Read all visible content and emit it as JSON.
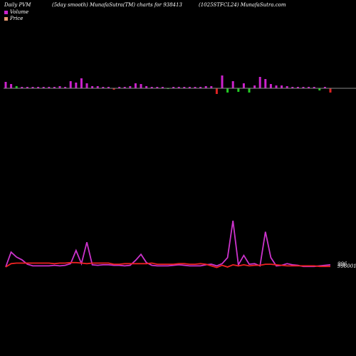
{
  "header": {
    "left": "Daily PVM",
    "middle": "(5day smooth) MunafaSutra(TM) charts for 938413",
    "right": "(1025STFCL24) MunafaSutra.com"
  },
  "legend": {
    "volume_label": "Volume",
    "price_label": "Price"
  },
  "colors": {
    "background": "#000000",
    "volume_up": "#cc22cc",
    "volume_down_green": "#22cc22",
    "volume_down_red": "#dd2222",
    "price_line": "#ee2222",
    "smooth_line": "#cc33cc",
    "baseline": "#888888",
    "legend_volume_swatch": "#cc22cc",
    "legend_price_swatch": "#e89a70"
  },
  "chart_data": {
    "type": "bar+line",
    "end_labels": [
      "996",
      "996001.0"
    ],
    "volume_bars": [
      {
        "v": 9,
        "c": "up"
      },
      {
        "v": 6,
        "c": "up"
      },
      {
        "v": 3,
        "c": "down_green"
      },
      {
        "v": 2,
        "c": "up"
      },
      {
        "v": 2,
        "c": "up"
      },
      {
        "v": 2,
        "c": "up"
      },
      {
        "v": 2,
        "c": "up"
      },
      {
        "v": 2,
        "c": "up"
      },
      {
        "v": 2,
        "c": "up"
      },
      {
        "v": 2,
        "c": "up"
      },
      {
        "v": 3,
        "c": "up"
      },
      {
        "v": 2,
        "c": "up"
      },
      {
        "v": 10,
        "c": "up"
      },
      {
        "v": 8,
        "c": "up"
      },
      {
        "v": 14,
        "c": "up"
      },
      {
        "v": 7,
        "c": "up"
      },
      {
        "v": 3,
        "c": "up"
      },
      {
        "v": 3,
        "c": "up"
      },
      {
        "v": 2,
        "c": "up"
      },
      {
        "v": 2,
        "c": "up"
      },
      {
        "v": -2,
        "c": "down_red"
      },
      {
        "v": 2,
        "c": "up"
      },
      {
        "v": 2,
        "c": "up"
      },
      {
        "v": 3,
        "c": "up"
      },
      {
        "v": 7,
        "c": "up"
      },
      {
        "v": 6,
        "c": "up"
      },
      {
        "v": 3,
        "c": "up"
      },
      {
        "v": 2,
        "c": "up"
      },
      {
        "v": 2,
        "c": "up"
      },
      {
        "v": 2,
        "c": "up"
      },
      {
        "v": -1,
        "c": "down_green"
      },
      {
        "v": 2,
        "c": "up"
      },
      {
        "v": 2,
        "c": "up"
      },
      {
        "v": 2,
        "c": "up"
      },
      {
        "v": 2,
        "c": "up"
      },
      {
        "v": 2,
        "c": "up"
      },
      {
        "v": 2,
        "c": "up"
      },
      {
        "v": 3,
        "c": "up"
      },
      {
        "v": 3,
        "c": "up"
      },
      {
        "v": -8,
        "c": "down_red"
      },
      {
        "v": 18,
        "c": "up"
      },
      {
        "v": -6,
        "c": "down_green"
      },
      {
        "v": 10,
        "c": "up"
      },
      {
        "v": -5,
        "c": "down_green"
      },
      {
        "v": 7,
        "c": "up"
      },
      {
        "v": -6,
        "c": "down_green"
      },
      {
        "v": 4,
        "c": "up"
      },
      {
        "v": 16,
        "c": "up"
      },
      {
        "v": 13,
        "c": "up"
      },
      {
        "v": 6,
        "c": "up"
      },
      {
        "v": 4,
        "c": "up"
      },
      {
        "v": 4,
        "c": "up"
      },
      {
        "v": 3,
        "c": "up"
      },
      {
        "v": 2,
        "c": "up"
      },
      {
        "v": 2,
        "c": "up"
      },
      {
        "v": 2,
        "c": "up"
      },
      {
        "v": 2,
        "c": "up"
      },
      {
        "v": 2,
        "c": "up"
      },
      {
        "v": -3,
        "c": "down_green"
      },
      {
        "v": 2,
        "c": "up"
      },
      {
        "v": -6,
        "c": "down_red"
      }
    ],
    "price_series": [
      {
        "x": 0,
        "y": 996.3
      },
      {
        "x": 1,
        "y": 996.9
      },
      {
        "x": 2,
        "y": 997.0
      },
      {
        "x": 3,
        "y": 997.0
      },
      {
        "x": 4,
        "y": 997.0
      },
      {
        "x": 5,
        "y": 997.0
      },
      {
        "x": 6,
        "y": 997.0
      },
      {
        "x": 7,
        "y": 997.0
      },
      {
        "x": 8,
        "y": 997.0
      },
      {
        "x": 9,
        "y": 996.9
      },
      {
        "x": 10,
        "y": 997.0
      },
      {
        "x": 11,
        "y": 997.0
      },
      {
        "x": 12,
        "y": 997.1
      },
      {
        "x": 13,
        "y": 997.1
      },
      {
        "x": 14,
        "y": 997.0
      },
      {
        "x": 15,
        "y": 996.9
      },
      {
        "x": 16,
        "y": 997.0
      },
      {
        "x": 17,
        "y": 997.0
      },
      {
        "x": 18,
        "y": 997.0
      },
      {
        "x": 19,
        "y": 997.0
      },
      {
        "x": 20,
        "y": 996.8
      },
      {
        "x": 21,
        "y": 996.8
      },
      {
        "x": 22,
        "y": 996.9
      },
      {
        "x": 23,
        "y": 996.9
      },
      {
        "x": 24,
        "y": 996.9
      },
      {
        "x": 25,
        "y": 996.9
      },
      {
        "x": 26,
        "y": 996.9
      },
      {
        "x": 27,
        "y": 997.0
      },
      {
        "x": 28,
        "y": 996.8
      },
      {
        "x": 29,
        "y": 996.8
      },
      {
        "x": 30,
        "y": 996.8
      },
      {
        "x": 31,
        "y": 996.8
      },
      {
        "x": 32,
        "y": 996.9
      },
      {
        "x": 33,
        "y": 996.9
      },
      {
        "x": 34,
        "y": 996.8
      },
      {
        "x": 35,
        "y": 996.8
      },
      {
        "x": 36,
        "y": 996.9
      },
      {
        "x": 37,
        "y": 996.8
      },
      {
        "x": 38,
        "y": 996.5
      },
      {
        "x": 39,
        "y": 996.2
      },
      {
        "x": 40,
        "y": 996.6
      },
      {
        "x": 41,
        "y": 996.3
      },
      {
        "x": 42,
        "y": 996.7
      },
      {
        "x": 43,
        "y": 996.5
      },
      {
        "x": 44,
        "y": 996.7
      },
      {
        "x": 45,
        "y": 996.5
      },
      {
        "x": 46,
        "y": 996.6
      },
      {
        "x": 47,
        "y": 996.6
      },
      {
        "x": 48,
        "y": 996.8
      },
      {
        "x": 49,
        "y": 996.8
      },
      {
        "x": 50,
        "y": 996.7
      },
      {
        "x": 51,
        "y": 996.6
      },
      {
        "x": 52,
        "y": 996.5
      },
      {
        "x": 53,
        "y": 996.5
      },
      {
        "x": 54,
        "y": 996.5
      },
      {
        "x": 55,
        "y": 996.5
      },
      {
        "x": 56,
        "y": 996.5
      },
      {
        "x": 57,
        "y": 996.5
      },
      {
        "x": 58,
        "y": 996.4
      },
      {
        "x": 59,
        "y": 996.4
      },
      {
        "x": 60,
        "y": 996.4
      }
    ],
    "smooth_series": [
      {
        "x": 0,
        "y": 996.3
      },
      {
        "x": 1,
        "y": 999.0
      },
      {
        "x": 2,
        "y": 998.1
      },
      {
        "x": 3,
        "y": 997.6
      },
      {
        "x": 4,
        "y": 996.8
      },
      {
        "x": 5,
        "y": 996.5
      },
      {
        "x": 6,
        "y": 996.5
      },
      {
        "x": 7,
        "y": 996.5
      },
      {
        "x": 8,
        "y": 996.5
      },
      {
        "x": 9,
        "y": 996.6
      },
      {
        "x": 10,
        "y": 996.5
      },
      {
        "x": 11,
        "y": 996.6
      },
      {
        "x": 12,
        "y": 996.9
      },
      {
        "x": 13,
        "y": 999.3
      },
      {
        "x": 14,
        "y": 996.9
      },
      {
        "x": 15,
        "y": 1000.8
      },
      {
        "x": 16,
        "y": 996.7
      },
      {
        "x": 17,
        "y": 996.6
      },
      {
        "x": 18,
        "y": 996.7
      },
      {
        "x": 19,
        "y": 996.7
      },
      {
        "x": 20,
        "y": 996.6
      },
      {
        "x": 21,
        "y": 996.6
      },
      {
        "x": 22,
        "y": 996.5
      },
      {
        "x": 23,
        "y": 996.6
      },
      {
        "x": 24,
        "y": 997.5
      },
      {
        "x": 25,
        "y": 998.6
      },
      {
        "x": 26,
        "y": 997.1
      },
      {
        "x": 27,
        "y": 996.6
      },
      {
        "x": 28,
        "y": 996.5
      },
      {
        "x": 29,
        "y": 996.5
      },
      {
        "x": 30,
        "y": 996.5
      },
      {
        "x": 31,
        "y": 996.6
      },
      {
        "x": 32,
        "y": 996.7
      },
      {
        "x": 33,
        "y": 996.6
      },
      {
        "x": 34,
        "y": 996.5
      },
      {
        "x": 35,
        "y": 996.5
      },
      {
        "x": 36,
        "y": 996.5
      },
      {
        "x": 37,
        "y": 996.7
      },
      {
        "x": 38,
        "y": 996.8
      },
      {
        "x": 39,
        "y": 996.5
      },
      {
        "x": 40,
        "y": 996.9
      },
      {
        "x": 41,
        "y": 998.0
      },
      {
        "x": 42,
        "y": 1004.7
      },
      {
        "x": 43,
        "y": 996.7
      },
      {
        "x": 44,
        "y": 998.4
      },
      {
        "x": 45,
        "y": 996.8
      },
      {
        "x": 46,
        "y": 996.9
      },
      {
        "x": 47,
        "y": 996.5
      },
      {
        "x": 48,
        "y": 1002.7
      },
      {
        "x": 49,
        "y": 998.0
      },
      {
        "x": 50,
        "y": 996.5
      },
      {
        "x": 51,
        "y": 996.6
      },
      {
        "x": 52,
        "y": 996.9
      },
      {
        "x": 53,
        "y": 996.7
      },
      {
        "x": 54,
        "y": 996.6
      },
      {
        "x": 55,
        "y": 996.4
      },
      {
        "x": 56,
        "y": 996.4
      },
      {
        "x": 57,
        "y": 996.4
      },
      {
        "x": 58,
        "y": 996.5
      },
      {
        "x": 59,
        "y": 996.6
      },
      {
        "x": 60,
        "y": 996.7
      }
    ],
    "ylim": [
      995,
      1006
    ],
    "grid": false,
    "legend_position": "top-left"
  }
}
